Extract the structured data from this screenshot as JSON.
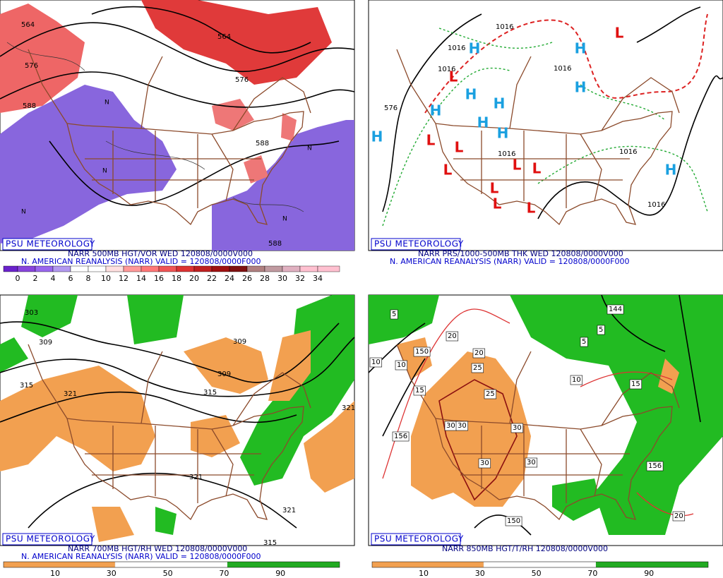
{
  "panels": [
    {
      "brand": "PSU METEOROLOGY",
      "line1": "NARR 500MB HGT/VOR WED 120808/0000V000",
      "line2": "N. AMERICAN REANALYSIS (NARR) VALID = 120808/0000F000",
      "scale": [
        0,
        2,
        4,
        6,
        8,
        10,
        12,
        14,
        16,
        18,
        20,
        22,
        24,
        26,
        28,
        30,
        32,
        34
      ],
      "contour_labels": [
        "564",
        "576",
        "588",
        "564",
        "576",
        "588",
        "588"
      ],
      "markers": [
        "N",
        "N",
        "N",
        "N",
        "N"
      ]
    },
    {
      "brand": "PSU METEOROLOGY",
      "line1": "NARR PRS/1000-500MB THK WED 120808/0000V000",
      "line2": "N. AMERICAN REANALYSIS (NARR) VALID = 120808/0000F000",
      "contour_labels": [
        "1016",
        "1016",
        "1016",
        "1016",
        "1016",
        "1016",
        "1016",
        "576"
      ],
      "markers": [
        "H",
        "H",
        "H",
        "H",
        "H",
        "H",
        "H",
        "H",
        "H",
        "H",
        "L",
        "L",
        "L",
        "L",
        "L",
        "L",
        "L",
        "L",
        "L",
        "L"
      ]
    },
    {
      "brand": "PSU METEOROLOGY",
      "line1": "NARR 700MB HGT/RH WED 120808/0000V000",
      "line2": "N. AMERICAN REANALYSIS (NARR) VALID = 120808/0000F000",
      "scale": [
        10,
        30,
        50,
        70,
        90
      ],
      "contour_labels": [
        "303",
        "309",
        "315",
        "321",
        "309",
        "309",
        "315",
        "321",
        "321",
        "315",
        "321"
      ]
    },
    {
      "brand": "PSU METEOROLOGY",
      "line1": "NARR 850MB HGT/T/RH 120808/0000V000",
      "scale": [
        10,
        30,
        50,
        70,
        90
      ],
      "contour_labels": [
        "5",
        "20",
        "20",
        "150",
        "10",
        "10",
        "25",
        "15",
        "25",
        "30",
        "30",
        "30",
        "30",
        "30",
        "156",
        "150",
        "144",
        "5",
        "5",
        "10",
        "15",
        "156",
        "20"
      ]
    }
  ]
}
